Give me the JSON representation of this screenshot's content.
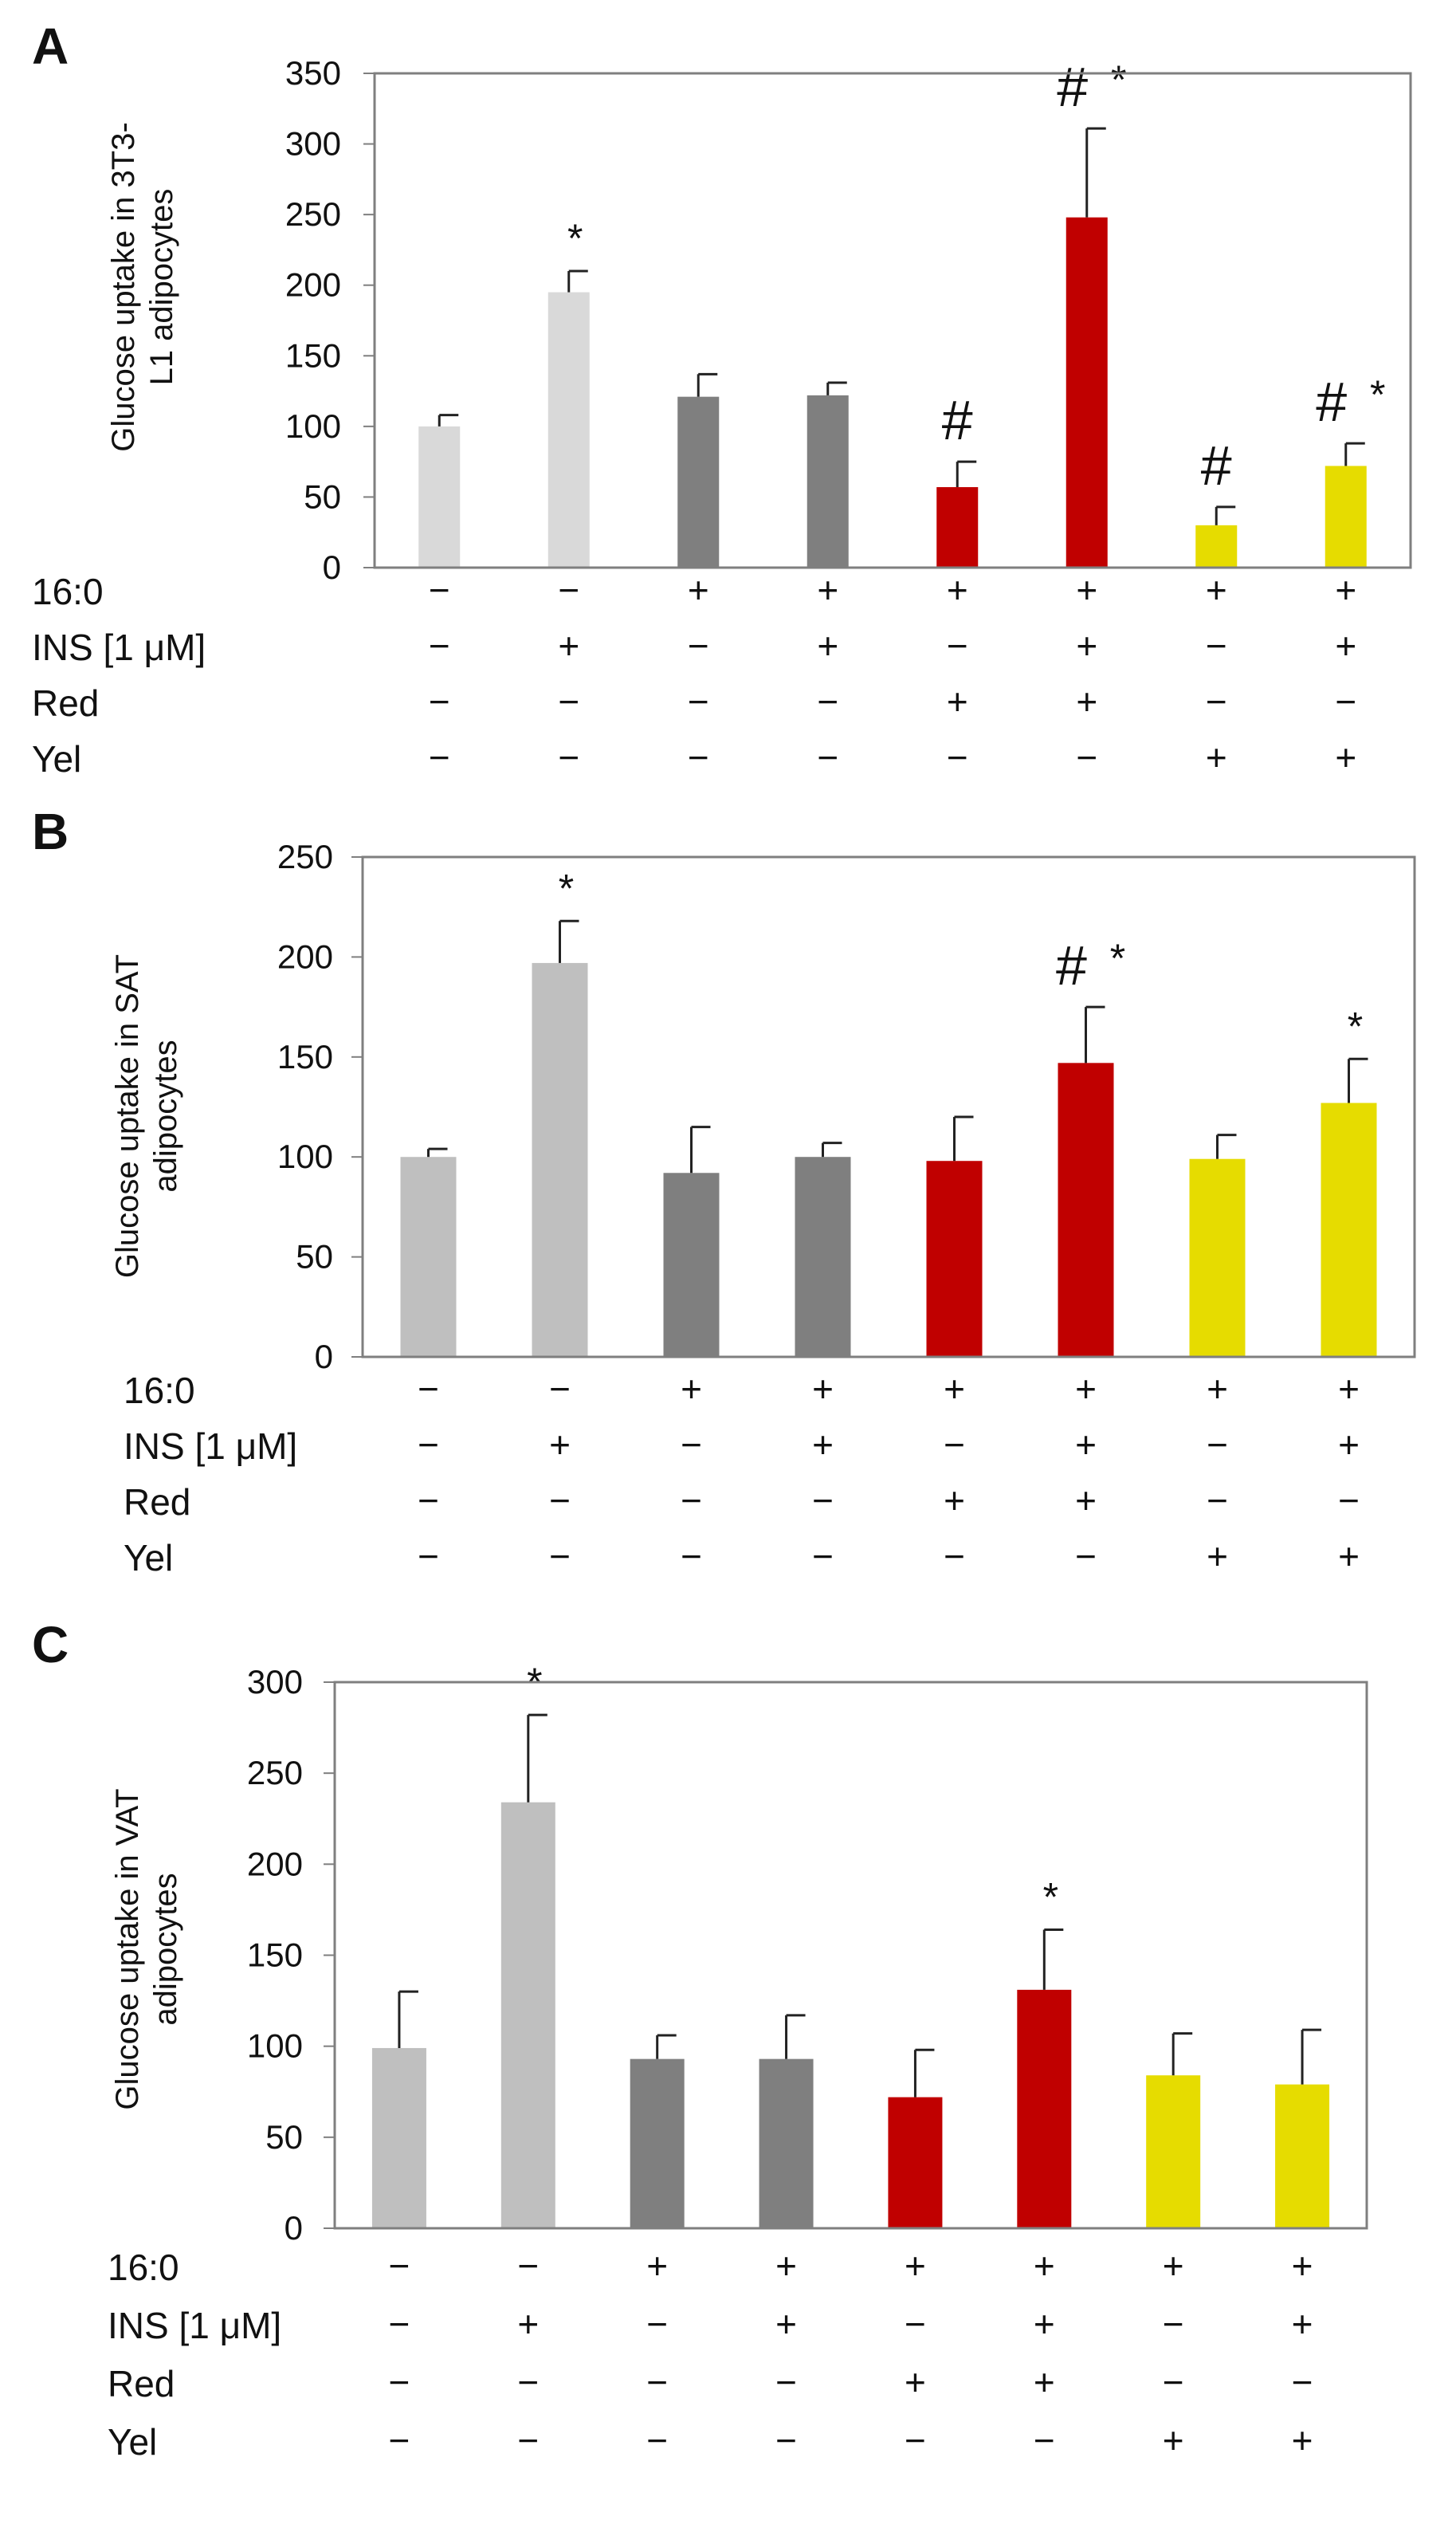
{
  "figure": {
    "row_labels": [
      "16:0",
      "INS [1 μM]",
      "Red",
      "Yel"
    ],
    "conditions": [
      [
        "−",
        "−",
        "+",
        "+",
        "+",
        "+",
        "+",
        "+"
      ],
      [
        "−",
        "+",
        "−",
        "+",
        "−",
        "+",
        "−",
        "+"
      ],
      [
        "−",
        "−",
        "−",
        "−",
        "+",
        "+",
        "−",
        "−"
      ],
      [
        "−",
        "−",
        "−",
        "−",
        "−",
        "−",
        "+",
        "+"
      ]
    ],
    "colors": {
      "light_gray": "#d9d9d9",
      "mid_gray": "#bfbfbf",
      "dark_gray": "#7f7f7f",
      "red": "#c00000",
      "yellow": "#e6dc00",
      "axis": "#7f7f7f"
    }
  },
  "chart_data": [
    {
      "type": "bar",
      "panel": "A",
      "ylabel": "Glucose uptake in 3T3-L1 adipocytes",
      "ylabel_lines": [
        "Glucose uptake in 3T3-",
        "L1 adipocytes"
      ],
      "ylim": [
        0,
        350
      ],
      "yticks": [
        0,
        50,
        100,
        150,
        200,
        250,
        300,
        350
      ],
      "values": [
        100,
        195,
        121,
        122,
        57,
        248,
        30,
        72
      ],
      "errors": [
        8,
        15,
        16,
        9,
        18,
        63,
        13,
        16
      ],
      "annotations": [
        {
          "bar": 1,
          "hash": "",
          "star": "*"
        },
        {
          "bar": 4,
          "hash": "#",
          "star": ""
        },
        {
          "bar": 5,
          "hash": "#",
          "star": "*"
        },
        {
          "bar": 6,
          "hash": "#",
          "star": ""
        },
        {
          "bar": 7,
          "hash": "#",
          "star": "*"
        }
      ],
      "bar_colors": [
        "light_gray",
        "light_gray",
        "dark_gray",
        "dark_gray",
        "red",
        "red",
        "yellow",
        "yellow"
      ]
    },
    {
      "type": "bar",
      "panel": "B",
      "ylabel": "Glucose uptake in SAT adipocytes",
      "ylabel_lines": [
        "Glucose uptake in SAT",
        "adipocytes"
      ],
      "ylim": [
        0,
        250
      ],
      "yticks": [
        0,
        50,
        100,
        150,
        200,
        250
      ],
      "values": [
        100,
        197,
        92,
        100,
        98,
        147,
        99,
        127
      ],
      "errors": [
        4,
        21,
        23,
        7,
        22,
        28,
        12,
        22
      ],
      "annotations": [
        {
          "bar": 1,
          "hash": "",
          "star": "*"
        },
        {
          "bar": 5,
          "hash": "#",
          "star": "*"
        },
        {
          "bar": 7,
          "hash": "",
          "star": "*"
        }
      ],
      "bar_colors": [
        "mid_gray",
        "mid_gray",
        "dark_gray",
        "dark_gray",
        "red",
        "red",
        "yellow",
        "yellow"
      ]
    },
    {
      "type": "bar",
      "panel": "C",
      "ylabel": "Glucose uptake in VAT adipocytes",
      "ylabel_lines": [
        "Glucose uptake in VAT",
        "adipocytes"
      ],
      "ylim": [
        0,
        300
      ],
      "yticks": [
        0,
        50,
        100,
        150,
        200,
        250,
        300
      ],
      "values": [
        99,
        234,
        93,
        93,
        72,
        131,
        84,
        79
      ],
      "errors": [
        31,
        48,
        13,
        24,
        26,
        33,
        23,
        30
      ],
      "annotations": [
        {
          "bar": 1,
          "hash": "",
          "star": "*"
        },
        {
          "bar": 5,
          "hash": "",
          "star": "*"
        }
      ],
      "bar_colors": [
        "mid_gray",
        "mid_gray",
        "dark_gray",
        "dark_gray",
        "red",
        "red",
        "yellow",
        "yellow"
      ]
    }
  ]
}
